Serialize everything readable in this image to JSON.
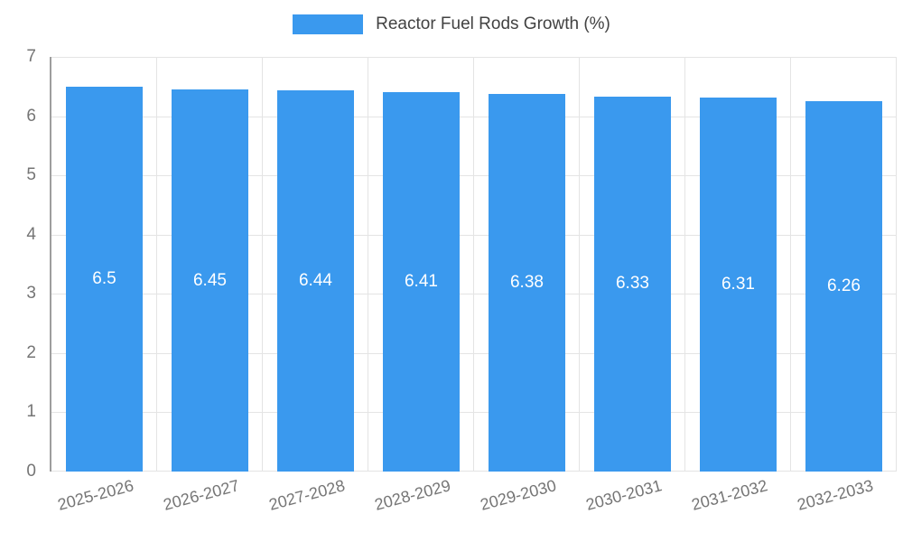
{
  "legend": {
    "label": "Reactor Fuel Rods Growth (%)"
  },
  "chart_data": {
    "type": "bar",
    "title": "Reactor Fuel Rods Growth (%)",
    "categories": [
      "2025-2026",
      "2026-2027",
      "2027-2028",
      "2028-2029",
      "2029-2030",
      "2030-2031",
      "2031-2032",
      "2032-2033"
    ],
    "values": [
      6.5,
      6.45,
      6.44,
      6.41,
      6.38,
      6.33,
      6.31,
      6.26
    ],
    "value_labels": [
      "6.5",
      "6.45",
      "6.44",
      "6.41",
      "6.38",
      "6.33",
      "6.31",
      "6.26"
    ],
    "xlabel": "",
    "ylabel": "",
    "ylim": [
      0,
      7
    ],
    "yticks": [
      0,
      1,
      2,
      3,
      4,
      5,
      6,
      7
    ],
    "grid": true,
    "legend_position": "top",
    "bar_color": "#3a99ee",
    "axis_text_color": "#757575",
    "grid_color": "#e4e4e4"
  }
}
